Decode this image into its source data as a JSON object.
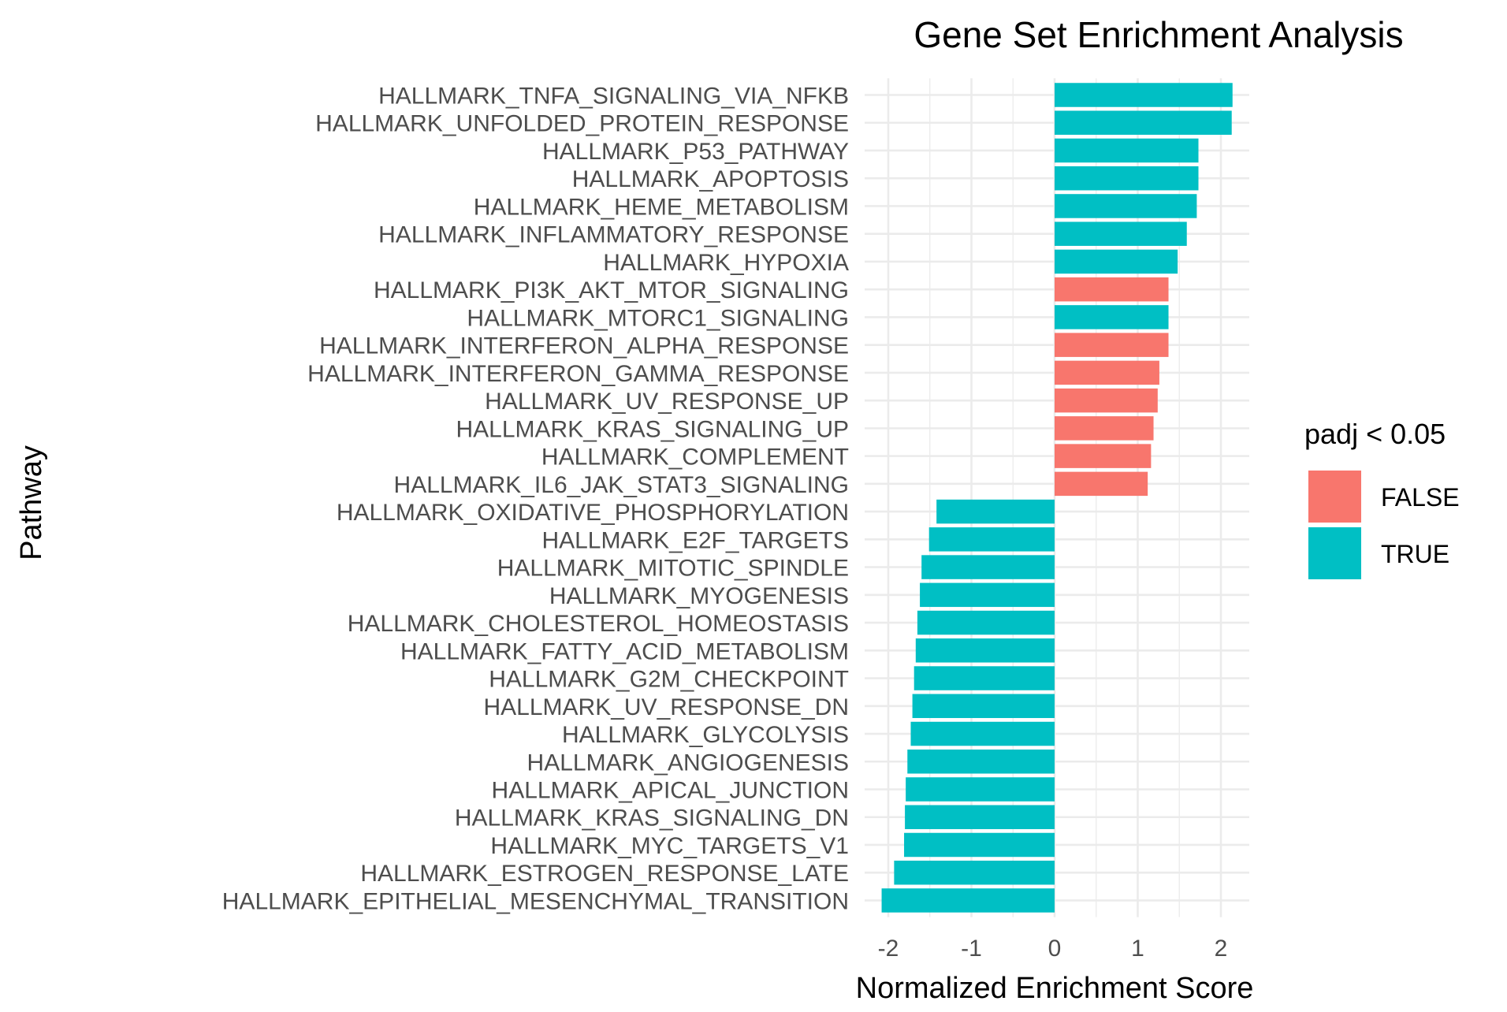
{
  "chart_data": {
    "type": "bar",
    "orientation": "horizontal",
    "title": "Gene Set Enrichment Analysis",
    "xlabel": "Normalized Enrichment Score",
    "ylabel": "Pathway",
    "xlim": [
      -2.1,
      2.35
    ],
    "xticks": [
      -2,
      -1,
      0,
      1,
      2
    ],
    "xtick_labels": [
      "-2",
      "-1",
      "0",
      "1",
      "2"
    ],
    "grid": true,
    "legend": {
      "title": "padj < 0.05",
      "placement": "right",
      "entries": [
        {
          "label": "FALSE",
          "color": "#F8766D"
        },
        {
          "label": "TRUE",
          "color": "#00BFC4"
        }
      ]
    },
    "categories": [
      "HALLMARK_TNFA_SIGNALING_VIA_NFKB",
      "HALLMARK_UNFOLDED_PROTEIN_RESPONSE",
      "HALLMARK_P53_PATHWAY",
      "HALLMARK_APOPTOSIS",
      "HALLMARK_HEME_METABOLISM",
      "HALLMARK_INFLAMMATORY_RESPONSE",
      "HALLMARK_HYPOXIA",
      "HALLMARK_PI3K_AKT_MTOR_SIGNALING",
      "HALLMARK_MTORC1_SIGNALING",
      "HALLMARK_INTERFERON_ALPHA_RESPONSE",
      "HALLMARK_INTERFERON_GAMMA_RESPONSE",
      "HALLMARK_UV_RESPONSE_UP",
      "HALLMARK_KRAS_SIGNALING_UP",
      "HALLMARK_COMPLEMENT",
      "HALLMARK_IL6_JAK_STAT3_SIGNALING",
      "HALLMARK_OXIDATIVE_PHOSPHORYLATION",
      "HALLMARK_E2F_TARGETS",
      "HALLMARK_MITOTIC_SPINDLE",
      "HALLMARK_MYOGENESIS",
      "HALLMARK_CHOLESTEROL_HOMEOSTASIS",
      "HALLMARK_FATTY_ACID_METABOLISM",
      "HALLMARK_G2M_CHECKPOINT",
      "HALLMARK_UV_RESPONSE_DN",
      "HALLMARK_GLYCOLYSIS",
      "HALLMARK_ANGIOGENESIS",
      "HALLMARK_APICAL_JUNCTION",
      "HALLMARK_KRAS_SIGNALING_DN",
      "HALLMARK_MYC_TARGETS_V1",
      "HALLMARK_ESTROGEN_RESPONSE_LATE",
      "HALLMARK_EPITHELIAL_MESENCHYMAL_TRANSITION"
    ],
    "values": [
      2.14,
      2.13,
      1.73,
      1.73,
      1.71,
      1.59,
      1.48,
      1.37,
      1.37,
      1.37,
      1.26,
      1.24,
      1.19,
      1.16,
      1.12,
      -1.42,
      -1.51,
      -1.6,
      -1.62,
      -1.65,
      -1.67,
      -1.69,
      -1.71,
      -1.73,
      -1.77,
      -1.79,
      -1.8,
      -1.81,
      -1.93,
      -2.08
    ],
    "significant": [
      true,
      true,
      true,
      true,
      true,
      true,
      true,
      false,
      true,
      false,
      false,
      false,
      false,
      false,
      false,
      true,
      true,
      true,
      true,
      true,
      true,
      true,
      true,
      true,
      true,
      true,
      true,
      true,
      true,
      true
    ]
  }
}
